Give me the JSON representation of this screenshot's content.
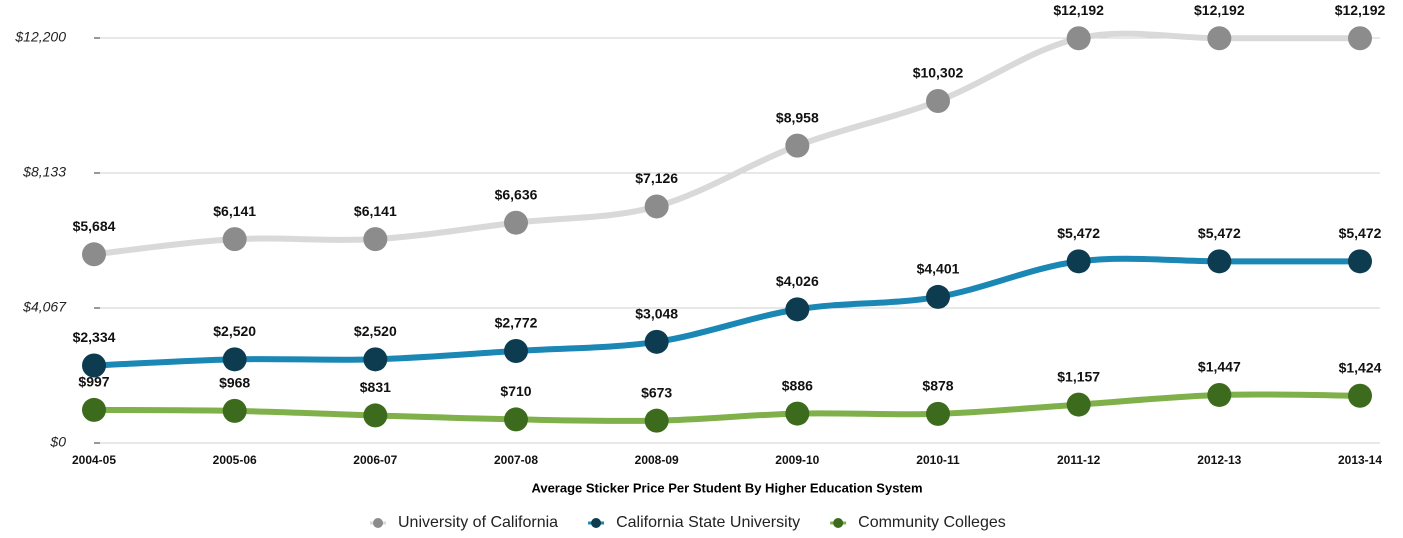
{
  "chart_data": {
    "type": "line",
    "xlabel": "Average Sticker Price Per Student By Higher Education System",
    "categories": [
      "2004-05",
      "2005-06",
      "2006-07",
      "2007-08",
      "2008-09",
      "2009-10",
      "2010-11",
      "2011-12",
      "2012-13",
      "2013-14"
    ],
    "ylim": [
      0,
      12200
    ],
    "yticks": [
      {
        "value": 0,
        "label": "$0"
      },
      {
        "value": 4067,
        "label": "$4,067"
      },
      {
        "value": 8133,
        "label": "$8,133"
      },
      {
        "value": 12200,
        "label": "$12,200"
      }
    ],
    "grid": true,
    "legend": "bottom",
    "series": [
      {
        "name": "University of California",
        "color": "#d9d9d9",
        "marker_color": "#8c8c8c",
        "values": [
          5684,
          6141,
          6141,
          6636,
          7126,
          8958,
          10302,
          12192,
          12192,
          12192
        ],
        "value_labels": [
          "$5,684",
          "$6,141",
          "$6,141",
          "$6,636",
          "$7,126",
          "$8,958",
          "$10,302",
          "$12,192",
          "$12,192",
          "$12,192"
        ]
      },
      {
        "name": "California State University",
        "color": "#1a87b5",
        "marker_color": "#0d3b4f",
        "values": [
          2334,
          2520,
          2520,
          2772,
          3048,
          4026,
          4401,
          5472,
          5472,
          5472
        ],
        "value_labels": [
          "$2,334",
          "$2,520",
          "$2,520",
          "$2,772",
          "$3,048",
          "$4,026",
          "$4,401",
          "$5,472",
          "$5,472",
          "$5,472"
        ]
      },
      {
        "name": "Community Colleges",
        "color": "#7fb04a",
        "marker_color": "#3d6b1e",
        "values": [
          997,
          968,
          831,
          710,
          673,
          886,
          878,
          1157,
          1447,
          1424
        ],
        "value_labels": [
          "$997",
          "$968",
          "$831",
          "$710",
          "$673",
          "$886",
          "$878",
          "$1,157",
          "$1,447",
          "$1,424"
        ]
      }
    ]
  }
}
